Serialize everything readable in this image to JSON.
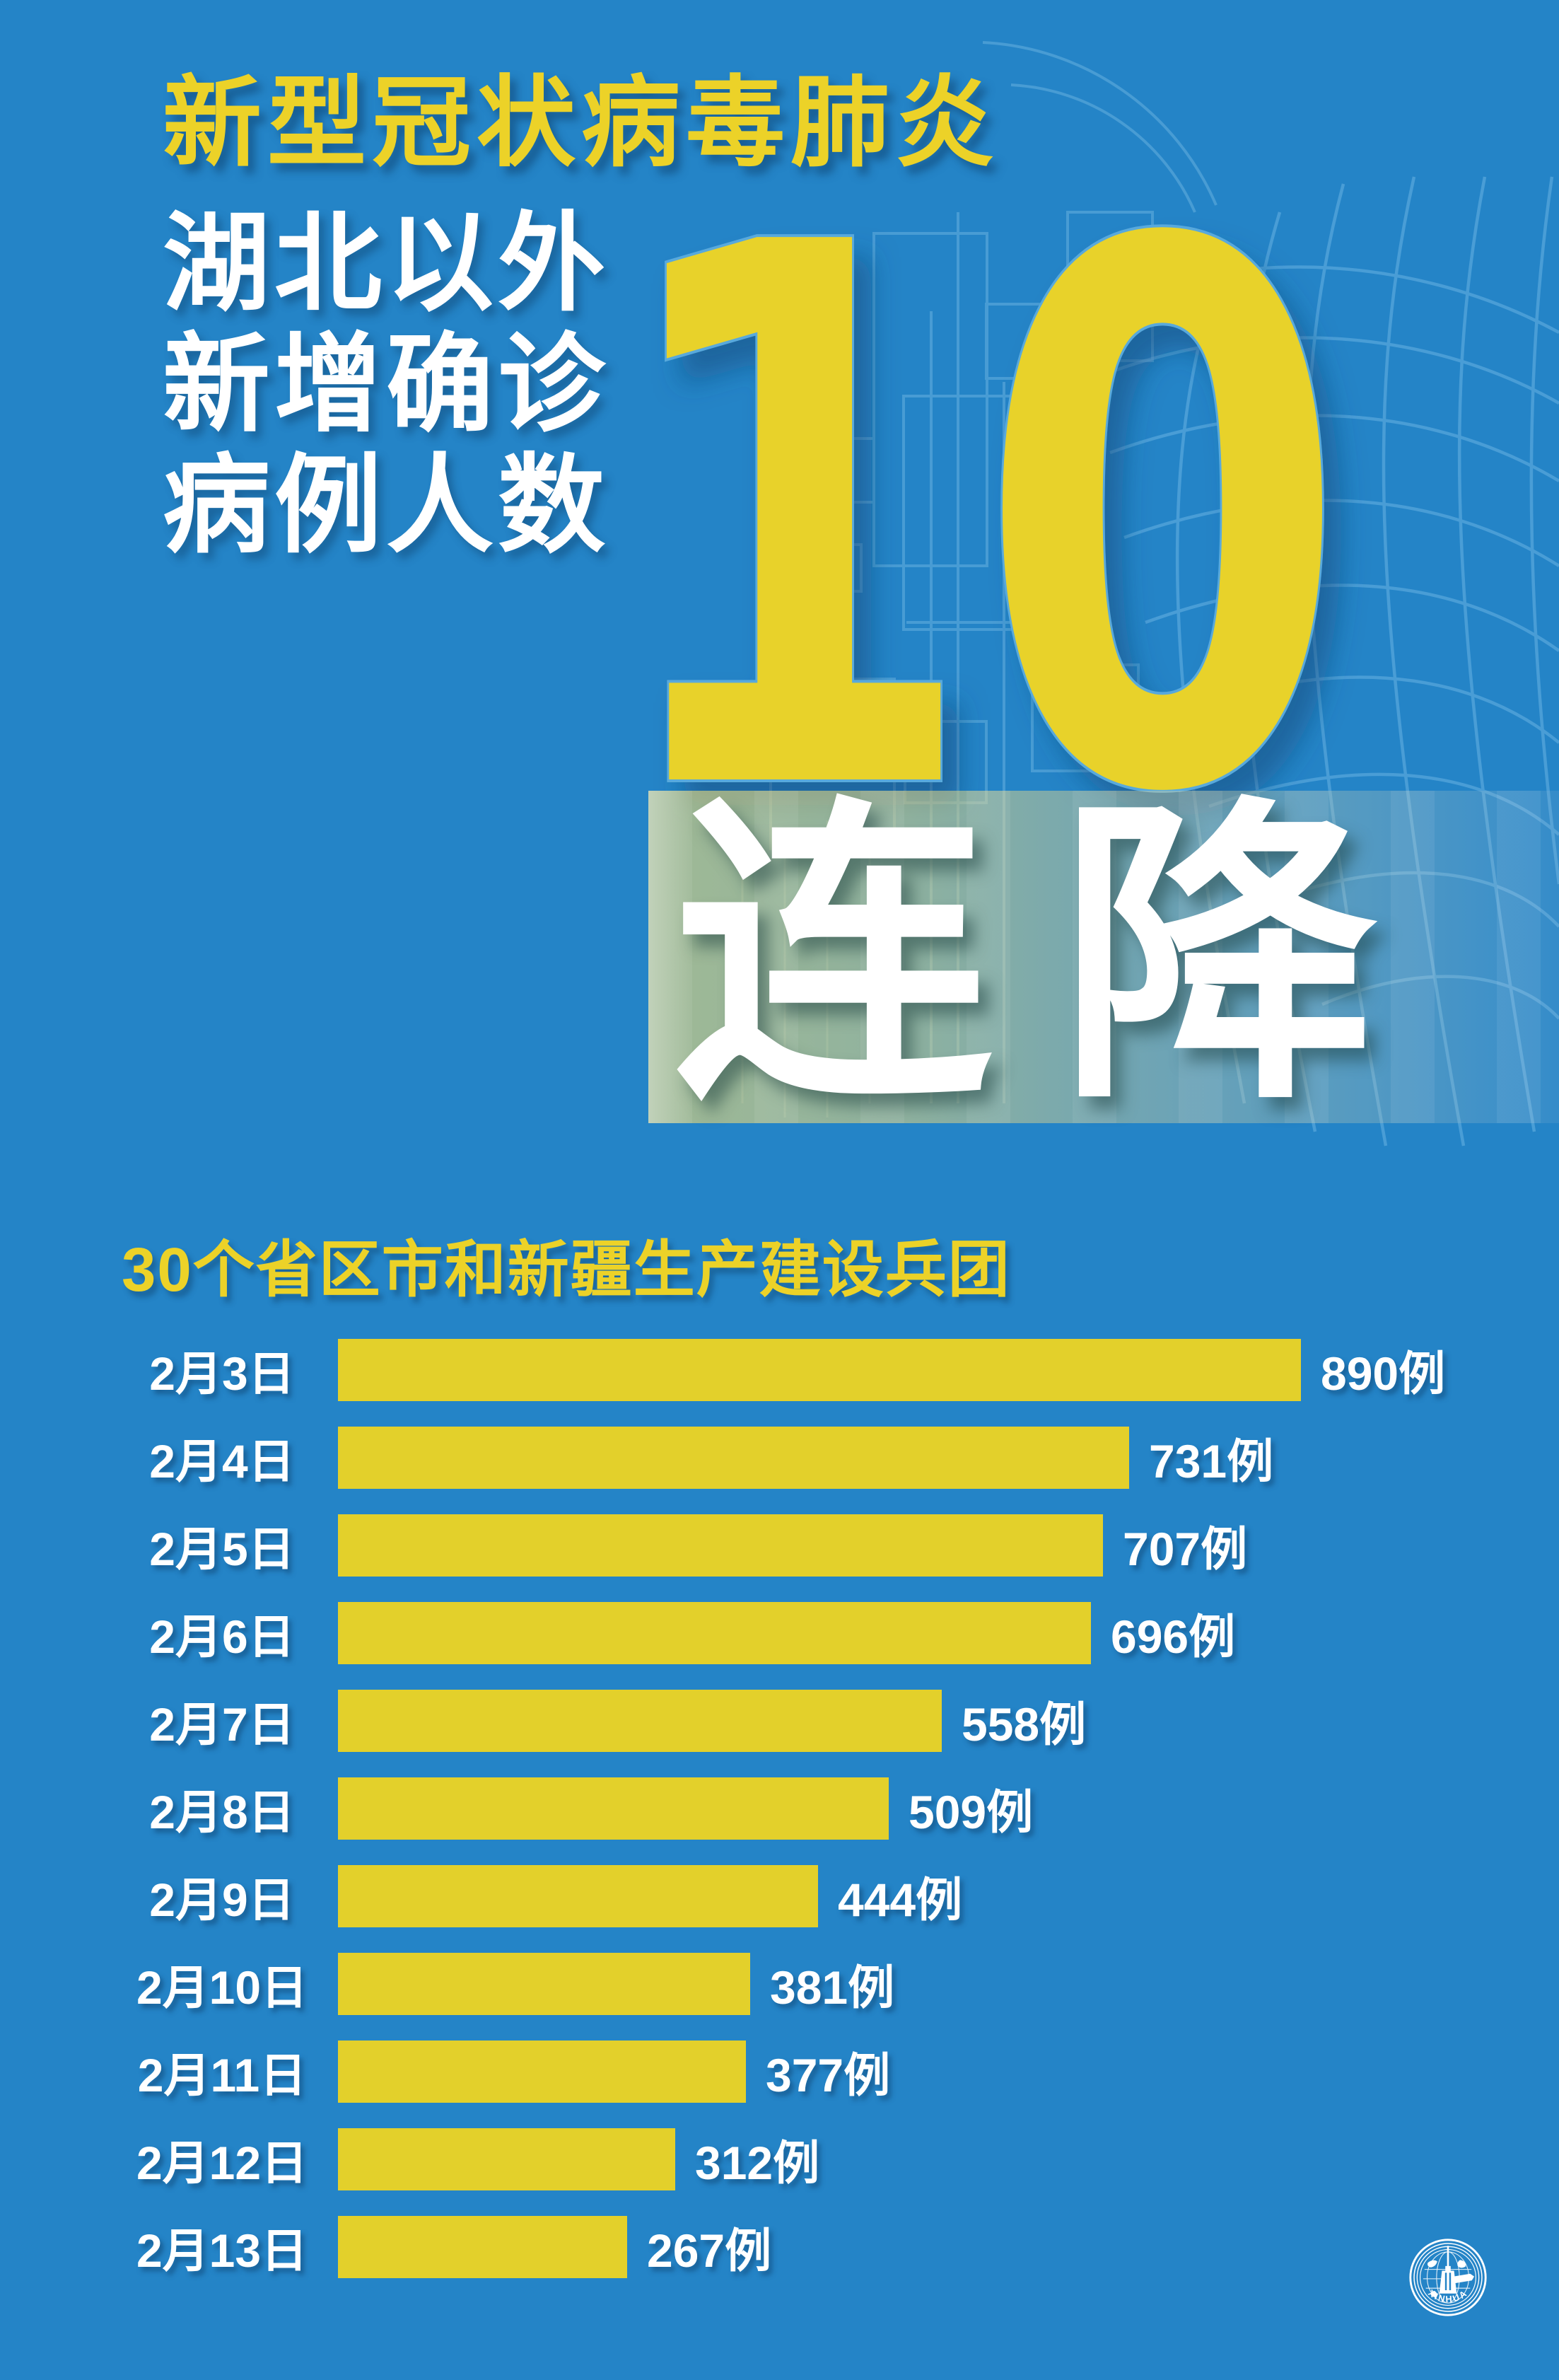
{
  "poster": {
    "title": "新型冠状病毒肺炎",
    "subtitle_lines": [
      "湖北以外",
      "新增确诊",
      "病例人数"
    ],
    "big_number": "10",
    "band_label": "连降",
    "logo_text": "XINHUA"
  },
  "chart_data": {
    "type": "bar",
    "orientation": "horizontal",
    "title": "30个省区市和新疆生产建设兵团",
    "categories": [
      "2月3日",
      "2月4日",
      "2月5日",
      "2月6日",
      "2月7日",
      "2月8日",
      "2月9日",
      "2月10日",
      "2月11日",
      "2月12日",
      "2月13日"
    ],
    "values": [
      890,
      731,
      707,
      696,
      558,
      509,
      444,
      381,
      377,
      312,
      267
    ],
    "value_labels": [
      "890例",
      "731例",
      "707例",
      "696例",
      "558例",
      "509例",
      "444例",
      "381例",
      "377例",
      "312例",
      "267例"
    ],
    "unit": "例",
    "xlim": [
      0,
      890
    ],
    "grid": false,
    "legend": "none",
    "bar_color": "#e3d02b",
    "label_color": "#ffffff"
  },
  "colors": {
    "background_blue": "#2484c7",
    "accent_yellow": "#e8d22a",
    "text_white": "#ffffff",
    "number_outline_blue": "#58a9dc",
    "band_overlay_olive": "#9aa87f",
    "pattern_light_blue": "#6fb7e6"
  }
}
